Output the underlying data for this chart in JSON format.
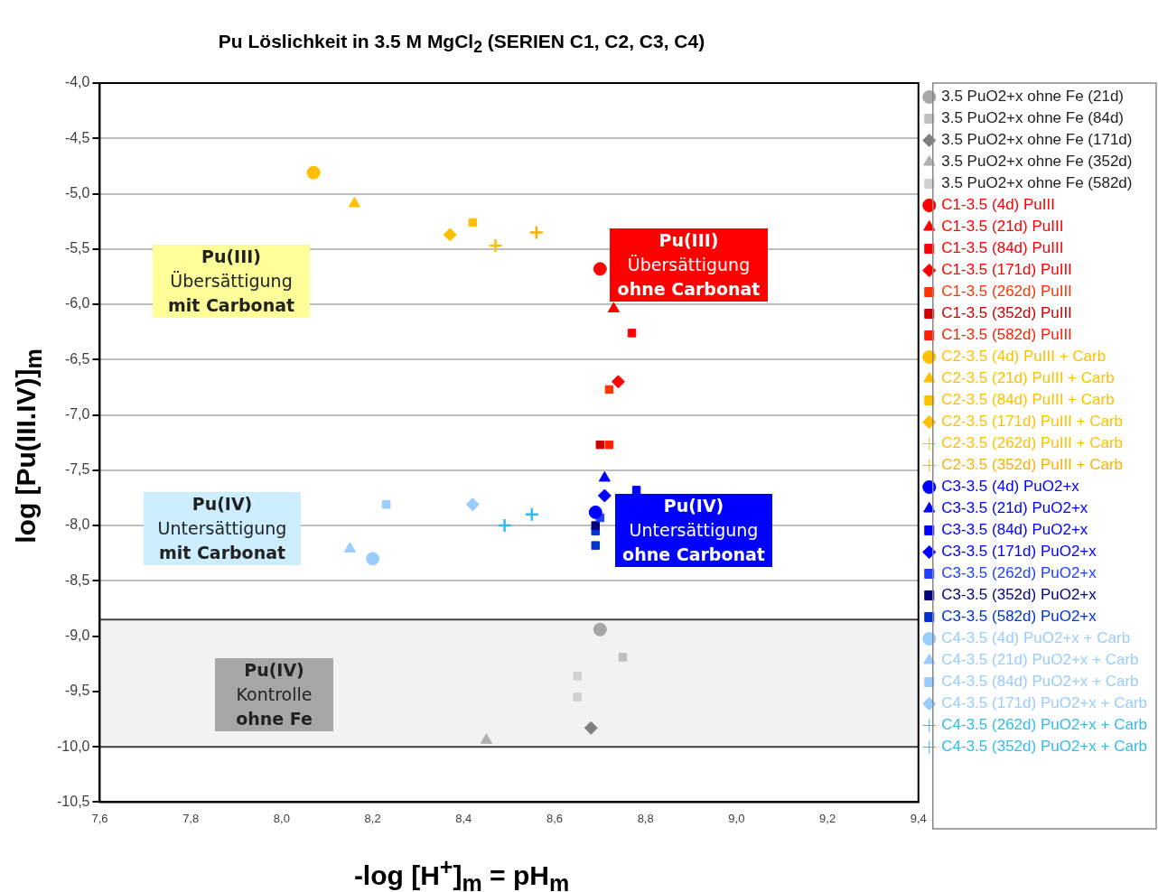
{
  "chart_data": {
    "type": "scatter",
    "title": "Pu Löslichkeit in 3.5 M MgCl$_{2}$ (SERIEN C1, C2, C3, C4)",
    "xlabel": "-log [H$^{+}$]$_{m}$ = pH$_{m}$",
    "ylabel": "log [Pu(III.IV)]$_{m}$",
    "xlim": [
      7.6,
      9.4
    ],
    "ylim": [
      -10.5,
      -4.0
    ],
    "xticks": [
      {
        "value": 7.6,
        "label": "7,6"
      },
      {
        "value": 7.8,
        "label": "7,8"
      },
      {
        "value": 8.0,
        "label": "8,0"
      },
      {
        "value": 8.2,
        "label": "8,2"
      },
      {
        "value": 8.4,
        "label": "8,4"
      },
      {
        "value": 8.6,
        "label": "8,6"
      },
      {
        "value": 8.8,
        "label": "8,8"
      },
      {
        "value": 9.0,
        "label": "9,0"
      },
      {
        "value": 9.2,
        "label": "9,2"
      },
      {
        "value": 9.4,
        "label": "9,4"
      }
    ],
    "yticks": [
      {
        "value": -4.0,
        "label": "-4,0"
      },
      {
        "value": -4.5,
        "label": "-4,5"
      },
      {
        "value": -5.0,
        "label": "-5,0"
      },
      {
        "value": -5.5,
        "label": "-5,5"
      },
      {
        "value": -6.0,
        "label": "-6,0"
      },
      {
        "value": -6.5,
        "label": "-6,5"
      },
      {
        "value": -7.0,
        "label": "-7,0"
      },
      {
        "value": -7.5,
        "label": "-7,5"
      },
      {
        "value": -8.0,
        "label": "-8,0"
      },
      {
        "value": -8.5,
        "label": "-8,5"
      },
      {
        "value": -9.0,
        "label": "-9,0"
      },
      {
        "value": -9.5,
        "label": "-9,5"
      },
      {
        "value": -10.0,
        "label": "-10,0"
      },
      {
        "value": -10.5,
        "label": "-10,5"
      }
    ],
    "grid": "y",
    "legend": "right",
    "bands": [
      {
        "axis": "y",
        "from": -10.0,
        "to": -8.85,
        "color": "#f2f2f2"
      }
    ],
    "ref_lines": [
      {
        "axis": "y",
        "value": -8.85,
        "color": "#404040"
      },
      {
        "axis": "y",
        "value": -10.0,
        "color": "#404040"
      }
    ],
    "annotations": [
      "Pu(III)\nÜbersättigung\nmit Carbonat",
      "Pu(III)\nÜbersättigung\nohne Carbonat",
      "Pu(IV)\nUntersättigung\nmit Carbonat",
      "Pu(IV)\nUntersättigung\nohne Carbonat",
      "Pu(IV)\nKontrolle\nohne Fe"
    ],
    "series": [
      {
        "name": "3.5 PuO2+x ohne Fe (21d)",
        "color": "#a6a6a6",
        "marker": "circle",
        "x": [
          8.7
        ],
        "values": [
          -8.94
        ]
      },
      {
        "name": "3.5 PuO2+x ohne Fe (84d)",
        "color": "#bfbfbf",
        "marker": "square",
        "x": [
          8.75
        ],
        "values": [
          -9.19
        ]
      },
      {
        "name": "3.5 PuO2+x ohne Fe (171d)",
        "color": "#7f7f7f",
        "marker": "diamond",
        "x": [
          8.68
        ],
        "values": [
          -9.83
        ]
      },
      {
        "name": "3.5 PuO2+x ohne Fe (352d)",
        "color": "#b0b0b0",
        "marker": "triangle",
        "x": [
          8.45
        ],
        "values": [
          -9.94
        ]
      },
      {
        "name": "3.5 PuO2+x ohne Fe (582d)",
        "color": "#d0d0d0",
        "marker": "square",
        "x": [
          8.65,
          8.65
        ],
        "values": [
          -9.36,
          -9.55
        ]
      },
      {
        "name": "C1-3.5 (4d) PuIII",
        "color": "#ff0000",
        "marker": "circle",
        "x": [
          8.7
        ],
        "values": [
          -5.68
        ]
      },
      {
        "name": "C1-3.5 (21d) PuIII",
        "color": "#ff0000",
        "marker": "triangle",
        "x": [
          8.73
        ],
        "values": [
          -6.04
        ]
      },
      {
        "name": "C1-3.5 (84d) PuIII",
        "color": "#ff0000",
        "marker": "square",
        "x": [
          8.77
        ],
        "values": [
          -6.26
        ]
      },
      {
        "name": "C1-3.5 (171d) PuIII",
        "color": "#ff0000",
        "marker": "diamond",
        "x": [
          8.74
        ],
        "values": [
          -6.7
        ]
      },
      {
        "name": "C1-3.5 (262d) PuIII",
        "color": "#ff3300",
        "marker": "square",
        "x": [
          8.72
        ],
        "values": [
          -6.77
        ]
      },
      {
        "name": "C1-3.5 (352d) PuIII",
        "color": "#cc0000",
        "marker": "square",
        "x": [
          8.7
        ],
        "values": [
          -7.27
        ]
      },
      {
        "name": "C1-3.5 (582d) PuIII",
        "color": "#ff2000",
        "marker": "square",
        "x": [
          8.72
        ],
        "values": [
          -7.27
        ]
      },
      {
        "name": "C2-3.5 (4d) PuIII + Carb",
        "color": "#ffc000",
        "marker": "circle",
        "x": [
          8.07
        ],
        "values": [
          -4.81
        ]
      },
      {
        "name": "C2-3.5 (21d) PuIII + Carb",
        "color": "#ffc000",
        "marker": "triangle",
        "x": [
          8.16
        ],
        "values": [
          -5.09
        ]
      },
      {
        "name": "C2-3.5 (84d) PuIII + Carb",
        "color": "#ffc000",
        "marker": "square",
        "x": [
          8.42
        ],
        "values": [
          -5.26
        ]
      },
      {
        "name": "C2-3.5 (171d) PuIII + Carb",
        "color": "#ffc000",
        "marker": "diamond",
        "x": [
          8.37
        ],
        "values": [
          -5.37
        ]
      },
      {
        "name": "C2-3.5 (262d) PuIII + Carb",
        "color": "#ffc000",
        "marker": "cross",
        "x": [
          8.47
        ],
        "values": [
          -5.47
        ]
      },
      {
        "name": "C2-3.5 (352d) PuIII + Carb",
        "color": "#ffb000",
        "marker": "cross",
        "x": [
          8.56
        ],
        "values": [
          -5.35
        ]
      },
      {
        "name": "C3-3.5 (4d) PuO2+x",
        "color": "#0000ff",
        "marker": "circle",
        "x": [
          8.69
        ],
        "values": [
          -7.88
        ]
      },
      {
        "name": "C3-3.5 (21d) PuO2+x",
        "color": "#0000ff",
        "marker": "triangle",
        "x": [
          8.71
        ],
        "values": [
          -7.57
        ]
      },
      {
        "name": "C3-3.5 (84d) PuO2+x",
        "color": "#0000ff",
        "marker": "square",
        "x": [
          8.78
        ],
        "values": [
          -7.68
        ]
      },
      {
        "name": "C3-3.5 (171d) PuO2+x",
        "color": "#0000ff",
        "marker": "diamond",
        "x": [
          8.71
        ],
        "values": [
          -7.73
        ]
      },
      {
        "name": "C3-3.5 (262d) PuO2+x",
        "color": "#2040ff",
        "marker": "square",
        "x": [
          8.7
        ],
        "values": [
          -7.93
        ]
      },
      {
        "name": "C3-3.5 (352d) PuO2+x",
        "color": "#000080",
        "marker": "square",
        "x": [
          8.69
        ],
        "values": [
          -8.0
        ]
      },
      {
        "name": "C3-3.5 (582d) PuO2+x",
        "color": "#0033cc",
        "marker": "square",
        "x": [
          8.69,
          8.69
        ],
        "values": [
          -8.05,
          -8.18
        ]
      },
      {
        "name": "C4-3.5 (4d) PuO2+x + Carb",
        "color": "#99ccff",
        "marker": "circle",
        "x": [
          8.2
        ],
        "values": [
          -8.3
        ]
      },
      {
        "name": "C4-3.5 (21d) PuO2+x + Carb",
        "color": "#99ccff",
        "marker": "triangle",
        "x": [
          8.15
        ],
        "values": [
          -8.21
        ]
      },
      {
        "name": "C4-3.5 (84d) PuO2+x + Carb",
        "color": "#99ccff",
        "marker": "square",
        "x": [
          8.23
        ],
        "values": [
          -7.81
        ]
      },
      {
        "name": "C4-3.5 (171d) PuO2+x + Carb",
        "color": "#99ccff",
        "marker": "diamond",
        "x": [
          8.42
        ],
        "values": [
          -7.81
        ]
      },
      {
        "name": "C4-3.5 (262d) PuO2+x + Carb",
        "color": "#33bbee",
        "marker": "cross",
        "x": [
          8.49
        ],
        "values": [
          -8.0
        ]
      },
      {
        "name": "C4-3.5 (352d) PuO2+x + Carb",
        "color": "#33bbee",
        "marker": "cross",
        "x": [
          8.55
        ],
        "values": [
          -7.9
        ]
      }
    ]
  }
}
